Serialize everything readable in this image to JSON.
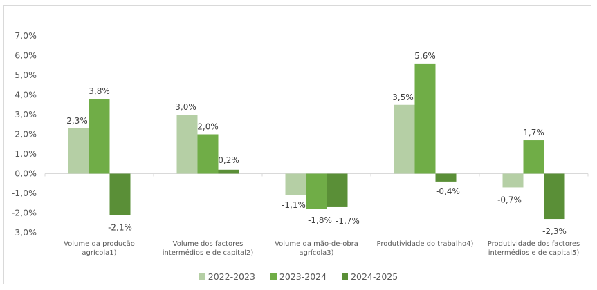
{
  "chart_data": {
    "type": "bar",
    "title": "",
    "xlabel": "",
    "ylabel": "",
    "ylim": [
      -3.0,
      7.0
    ],
    "yticks": [
      "7,0%",
      "6,0%",
      "5,0%",
      "4,0%",
      "3,0%",
      "2,0%",
      "1,0%",
      "0,0%",
      "-1,0%",
      "-2,0%",
      "-3,0%"
    ],
    "ytick_values": [
      7,
      6,
      5,
      4,
      3,
      2,
      1,
      0,
      -1,
      -2,
      -3
    ],
    "grid": false,
    "legend_position": "bottom",
    "categories": [
      [
        "Volume da produção",
        "agrícola1)"
      ],
      [
        "Volume dos factores",
        "intermédios e de capital2)"
      ],
      [
        "Volume da mão-de-obra",
        "agrícola3)"
      ],
      [
        "Produtividade do trabalho4)"
      ],
      [
        "Produtividade dos factores",
        "intermédios e de capital5)"
      ]
    ],
    "series": [
      {
        "name": "2022-2023",
        "color": "#b5cfa5",
        "values": [
          2.3,
          3.0,
          -1.1,
          3.5,
          -0.7
        ],
        "labels": [
          "2,3%",
          "3,0%",
          "-1,1%",
          "3,5%",
          "-0,7%"
        ]
      },
      {
        "name": "2023-2024",
        "color": "#70ad47",
        "values": [
          3.8,
          2.0,
          -1.8,
          5.6,
          1.7
        ],
        "labels": [
          "3,8%",
          "2,0%",
          "-1,8%",
          "5,6%",
          "1,7%"
        ]
      },
      {
        "name": "2024-2025",
        "color": "#5a8f37",
        "values": [
          -2.1,
          0.2,
          -1.7,
          -0.4,
          -2.3
        ],
        "labels": [
          "-2,1%",
          "0,2%",
          "-1,7%",
          "-0,4%",
          "-2,3%"
        ]
      }
    ]
  }
}
